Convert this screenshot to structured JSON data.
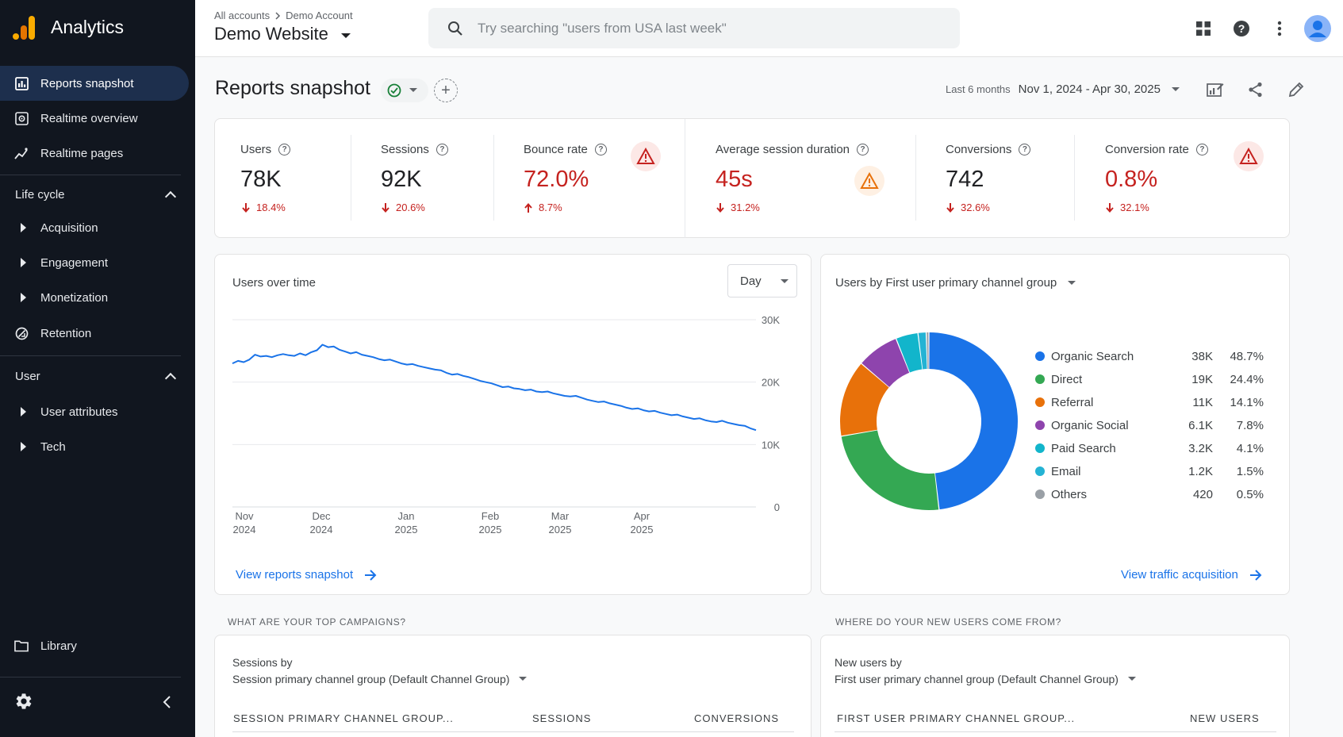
{
  "app": {
    "name": "Analytics"
  },
  "sidebar": {
    "top_items": [
      {
        "label": "Reports snapshot",
        "icon": "reports-icon"
      },
      {
        "label": "Realtime overview",
        "icon": "realtime-icon"
      },
      {
        "label": "Realtime pages",
        "icon": "realtime-pages-icon"
      }
    ],
    "lifecycle": {
      "heading": "Life cycle",
      "items": [
        {
          "label": "Acquisition"
        },
        {
          "label": "Engagement"
        },
        {
          "label": "Monetization"
        },
        {
          "label": "Retention",
          "icon": "retention-icon"
        }
      ]
    },
    "user": {
      "heading": "User",
      "items": [
        {
          "label": "User attributes"
        },
        {
          "label": "Tech"
        }
      ]
    },
    "library": "Library"
  },
  "header": {
    "breadcrumb": {
      "accounts": "All accounts",
      "account": "Demo Account"
    },
    "property": "Demo Website",
    "search_placeholder": "Try searching \"users from USA last week\""
  },
  "page": {
    "title": "Reports snapshot",
    "date_prefix": "Last 6 months",
    "date_range": "Nov 1, 2024 - Apr 30, 2025"
  },
  "kpis": [
    {
      "label": "Users",
      "value": "78K",
      "delta": "18.4%",
      "direction": "down",
      "bad": false
    },
    {
      "label": "Sessions",
      "value": "92K",
      "delta": "20.6%",
      "direction": "down",
      "bad": false
    },
    {
      "label": "Bounce rate",
      "value": "72.0%",
      "delta": "8.7%",
      "direction": "up",
      "bad": true
    },
    {
      "label": "Average session duration",
      "value": "45s",
      "delta": "31.2%",
      "direction": "down",
      "bad": true
    },
    {
      "label": "Conversions",
      "value": "742",
      "delta": "32.6%",
      "direction": "down",
      "bad": false
    },
    {
      "label": "Conversion rate",
      "value": "0.8%",
      "delta": "32.1%",
      "direction": "down",
      "bad": true
    }
  ],
  "users_over_time": {
    "title": "Users over time",
    "granularity": "Day",
    "link": "View reports snapshot",
    "chart_data": {
      "type": "line",
      "y_ticks": [
        "30K",
        "20K",
        "10K",
        "0"
      ],
      "y_range": [
        0,
        30000
      ],
      "x_ticks": [
        {
          "month": "Nov",
          "year": "2024"
        },
        {
          "month": "Dec",
          "year": "2024"
        },
        {
          "month": "Jan",
          "year": "2025"
        },
        {
          "month": "Feb",
          "year": "2025"
        },
        {
          "month": "Mar",
          "year": "2025"
        },
        {
          "month": "Apr",
          "year": "2025"
        }
      ],
      "color": "#1a73e8",
      "values": [
        23000,
        23400,
        23200,
        23600,
        24400,
        24100,
        24200,
        24000,
        24300,
        24500,
        24300,
        24200,
        24600,
        24300,
        24800,
        25100,
        26000,
        25600,
        25700,
        25200,
        24900,
        24600,
        24800,
        24400,
        24200,
        24000,
        23700,
        23500,
        23600,
        23300,
        23000,
        22800,
        22900,
        22600,
        22400,
        22200,
        22000,
        21900,
        21500,
        21200,
        21300,
        21000,
        20800,
        20500,
        20200,
        20000,
        19800,
        19500,
        19200,
        19300,
        19000,
        18900,
        18700,
        18800,
        18500,
        18400,
        18500,
        18200,
        18000,
        17800,
        17700,
        17800,
        17500,
        17200,
        17000,
        16800,
        16900,
        16600,
        16400,
        16200,
        15900,
        15700,
        15800,
        15500,
        15300,
        15400,
        15100,
        14900,
        14700,
        14800,
        14500,
        14300,
        14100,
        14200,
        13900,
        13700,
        13600,
        13800,
        13500,
        13300,
        13100,
        13000,
        12600,
        12300
      ]
    }
  },
  "channel_chart": {
    "title": "Users by First user primary channel group",
    "link": "View traffic acquisition",
    "chart_data": {
      "type": "pie",
      "slices": [
        {
          "name": "Organic Search",
          "value": "38K",
          "pct": 48.7,
          "pct_label": "48.7%",
          "color": "#1a73e8"
        },
        {
          "name": "Direct",
          "value": "19K",
          "pct": 24.4,
          "pct_label": "24.4%",
          "color": "#34a853"
        },
        {
          "name": "Referral",
          "value": "11K",
          "pct": 14.1,
          "pct_label": "14.1%",
          "color": "#e8710a"
        },
        {
          "name": "Organic Social",
          "value": "6.1K",
          "pct": 7.8,
          "pct_label": "7.8%",
          "color": "#8e44ad"
        },
        {
          "name": "Paid Search",
          "value": "3.2K",
          "pct": 4.1,
          "pct_label": "4.1%",
          "color": "#12b5cb"
        },
        {
          "name": "Email",
          "value": "1.2K",
          "pct": 1.5,
          "pct_label": "1.5%",
          "color": "#24b3d4"
        },
        {
          "name": "Others",
          "value": "420",
          "pct": 0.5,
          "pct_label": "0.5%",
          "color": "#9aa0a6"
        }
      ]
    }
  },
  "campaigns": {
    "section": "WHAT ARE YOUR TOP CAMPAIGNS?",
    "subtitle_top": "Sessions by",
    "subtitle_dim": "Session primary channel group (Default Channel Group)",
    "columns": [
      "SESSION PRIMARY CHANNEL GROUP...",
      "SESSIONS",
      "CONVERSIONS"
    ]
  },
  "new_users": {
    "section": "WHERE DO YOUR NEW USERS COME FROM?",
    "subtitle_top": "New users by",
    "subtitle_dim": "First user primary channel group (Default Channel Group)",
    "columns": [
      "FIRST USER PRIMARY CHANNEL GROUP...",
      "NEW USERS"
    ]
  }
}
